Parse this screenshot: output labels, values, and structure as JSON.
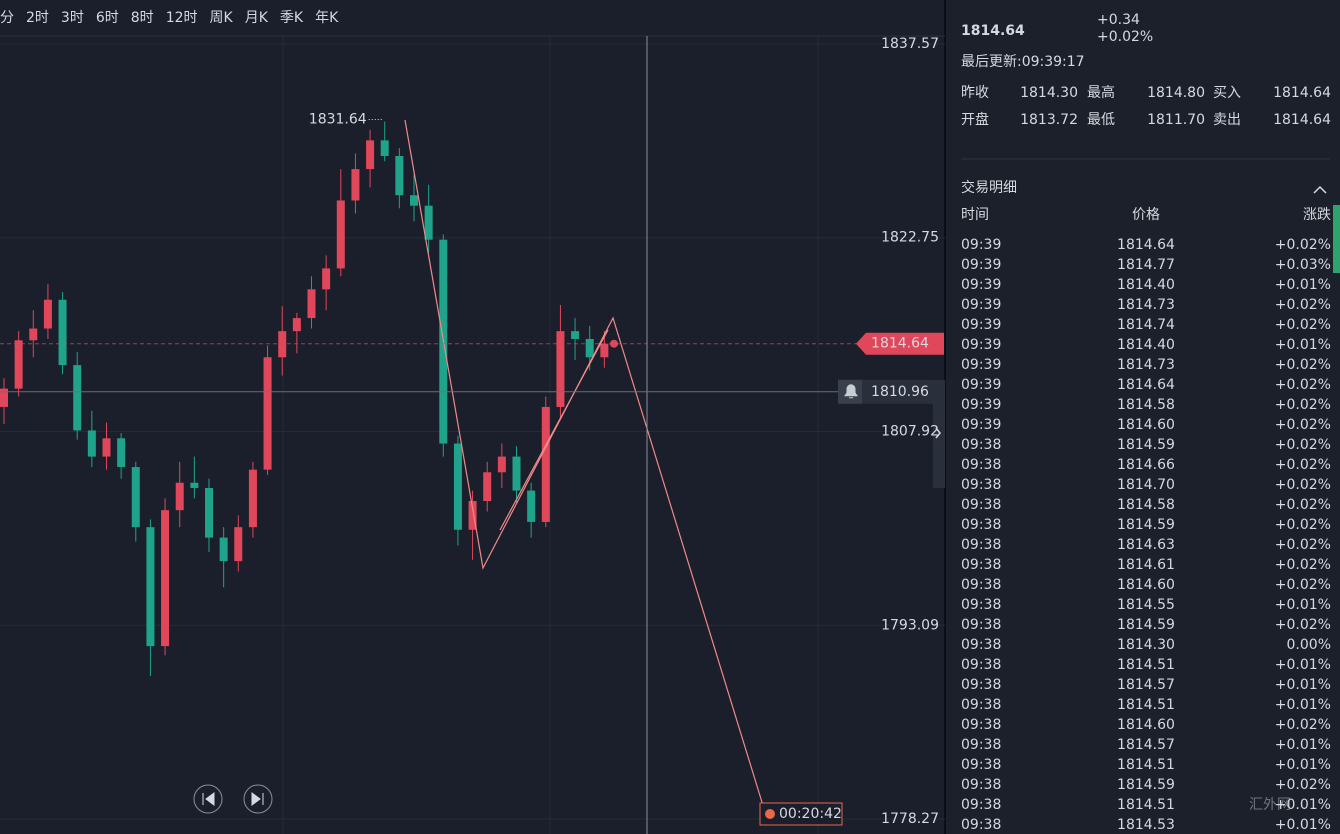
{
  "toolbar": {
    "timeframes": [
      "分",
      "2时",
      "3时",
      "6时",
      "8时",
      "12时",
      "周K",
      "月K",
      "季K",
      "年K"
    ]
  },
  "chart_data": {
    "type": "candlestick",
    "open": [
      1809.8,
      1811.2,
      1814.9,
      1815.8,
      1818.0,
      1813.0,
      1808.0,
      1806.0,
      1807.4,
      1805.2,
      1800.6,
      1791.5,
      1801.9,
      1804.0,
      1803.6,
      1799.8,
      1798.0,
      1800.6,
      1805.0,
      1813.6,
      1815.6,
      1816.6,
      1818.8,
      1820.4,
      1825.6,
      1828.0,
      1830.2,
      1829.0,
      1826.0,
      1825.2,
      1822.6,
      1807.0,
      1800.4,
      1802.6,
      1804.8,
      1806.0,
      1803.4,
      1801.0,
      1809.8,
      1815.6,
      1815.0,
      1813.6
    ],
    "high": [
      1812.0,
      1815.6,
      1817.2,
      1819.2,
      1818.6,
      1814.0,
      1809.5,
      1808.6,
      1807.8,
      1805.6,
      1801.2,
      1802.8,
      1805.6,
      1806.0,
      1804.3,
      1800.6,
      1801.5,
      1805.6,
      1814.5,
      1817.5,
      1817.0,
      1819.8,
      1821.4,
      1828.0,
      1829.2,
      1831.0,
      1831.64,
      1829.6,
      1827.6,
      1826.8,
      1823.0,
      1807.6,
      1803.4,
      1805.6,
      1807.0,
      1806.8,
      1804.0,
      1810.6,
      1817.6,
      1816.6,
      1816.0,
      1815.6
    ],
    "low": [
      1808.5,
      1810.6,
      1813.6,
      1815.0,
      1812.3,
      1807.3,
      1805.2,
      1805.0,
      1804.3,
      1799.5,
      1789.2,
      1790.8,
      1800.6,
      1802.8,
      1798.7,
      1796.0,
      1797.2,
      1799.8,
      1804.6,
      1812.2,
      1813.9,
      1815.8,
      1817.2,
      1819.8,
      1824.6,
      1826.6,
      1828.6,
      1825.0,
      1824.0,
      1821.6,
      1806.0,
      1799.2,
      1798.1,
      1801.8,
      1803.6,
      1802.4,
      1799.8,
      1800.6,
      1809.0,
      1813.4,
      1812.6,
      1812.8
    ],
    "close": [
      1811.2,
      1814.9,
      1815.8,
      1818.0,
      1813.0,
      1808.0,
      1806.0,
      1807.4,
      1805.2,
      1800.6,
      1791.5,
      1801.9,
      1804.0,
      1803.6,
      1799.8,
      1798.0,
      1800.6,
      1805.0,
      1813.6,
      1815.6,
      1816.6,
      1818.8,
      1820.4,
      1825.6,
      1828.0,
      1830.2,
      1829.0,
      1826.0,
      1825.2,
      1822.6,
      1807.0,
      1800.4,
      1802.6,
      1804.8,
      1806.0,
      1803.4,
      1801.0,
      1809.8,
      1815.6,
      1815.0,
      1813.6,
      1814.64
    ],
    "up_color": "#e0475a",
    "down_color": "#1fa38a",
    "ylim": [
      1777.12,
      1840.94
    ],
    "yticks": [
      1837.57,
      1822.75,
      1807.92,
      1793.09,
      1778.27
    ],
    "high_marker": 1831.64,
    "current_price": 1814.64,
    "alert_price": 1810.96,
    "countdown": "00:20:42"
  },
  "quote": {
    "price": "1814.64",
    "change": "+0.34",
    "change_pct": "+0.02%",
    "updated": "最后更新:09:39:17",
    "stats": [
      [
        "昨收",
        "1814.30",
        "最高",
        "1814.80",
        "买入",
        "1814.64"
      ],
      [
        "开盘",
        "1813.72",
        "最低",
        "1811.70",
        "卖出",
        "1814.64"
      ]
    ]
  },
  "trades": {
    "title": "交易明细",
    "columns": [
      "时间",
      "价格",
      "涨跌"
    ],
    "rows": [
      [
        "09:39",
        "1814.64",
        "+0.02%"
      ],
      [
        "09:39",
        "1814.77",
        "+0.03%"
      ],
      [
        "09:39",
        "1814.40",
        "+0.01%"
      ],
      [
        "09:39",
        "1814.73",
        "+0.02%"
      ],
      [
        "09:39",
        "1814.74",
        "+0.02%"
      ],
      [
        "09:39",
        "1814.40",
        "+0.01%"
      ],
      [
        "09:39",
        "1814.73",
        "+0.02%"
      ],
      [
        "09:39",
        "1814.64",
        "+0.02%"
      ],
      [
        "09:39",
        "1814.58",
        "+0.02%"
      ],
      [
        "09:39",
        "1814.60",
        "+0.02%"
      ],
      [
        "09:38",
        "1814.59",
        "+0.02%"
      ],
      [
        "09:38",
        "1814.66",
        "+0.02%"
      ],
      [
        "09:38",
        "1814.70",
        "+0.02%"
      ],
      [
        "09:38",
        "1814.58",
        "+0.02%"
      ],
      [
        "09:38",
        "1814.59",
        "+0.02%"
      ],
      [
        "09:38",
        "1814.63",
        "+0.02%"
      ],
      [
        "09:38",
        "1814.61",
        "+0.02%"
      ],
      [
        "09:38",
        "1814.60",
        "+0.02%"
      ],
      [
        "09:38",
        "1814.55",
        "+0.01%"
      ],
      [
        "09:38",
        "1814.59",
        "+0.02%"
      ],
      [
        "09:38",
        "1814.30",
        "0.00%"
      ],
      [
        "09:38",
        "1814.51",
        "+0.01%"
      ],
      [
        "09:38",
        "1814.57",
        "+0.01%"
      ],
      [
        "09:38",
        "1814.51",
        "+0.01%"
      ],
      [
        "09:38",
        "1814.60",
        "+0.02%"
      ],
      [
        "09:38",
        "1814.57",
        "+0.01%"
      ],
      [
        "09:38",
        "1814.51",
        "+0.01%"
      ],
      [
        "09:38",
        "1814.59",
        "+0.02%"
      ],
      [
        "09:38",
        "1814.51",
        "+0.01%"
      ],
      [
        "09:38",
        "1814.53",
        "+0.01%"
      ]
    ]
  },
  "watermark": "汇外网"
}
